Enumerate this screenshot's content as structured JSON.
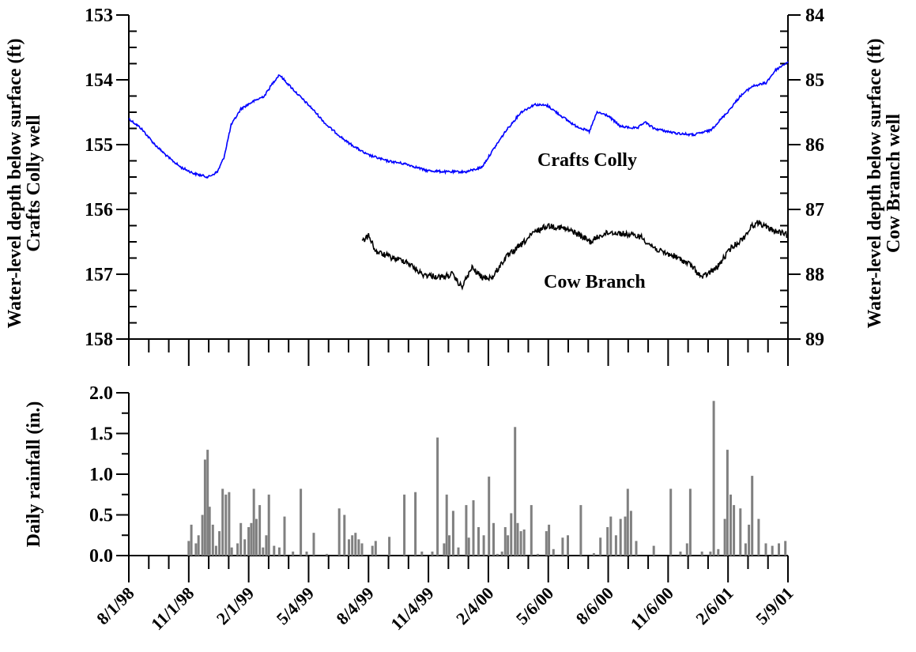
{
  "chart_data": [
    {
      "type": "line",
      "title": "",
      "ylabel_left": [
        "Water-level depth below surface (ft)",
        "Crafts Colly well"
      ],
      "ylabel_right": [
        "Water-level depth below surface (ft)",
        "Cow Branch well"
      ],
      "ylim_left": [
        153,
        158
      ],
      "ylim_right": [
        84,
        89
      ],
      "y_inverted": true,
      "left_ticks": [
        "153",
        "154",
        "155",
        "156",
        "157",
        "158"
      ],
      "right_ticks": [
        "84",
        "85",
        "86",
        "87",
        "88",
        "89"
      ],
      "series": [
        {
          "name": "Crafts Colly",
          "axis": "left",
          "color": "#0000ff",
          "points": [
            [
              "1998-08-01",
              154.6
            ],
            [
              "1998-08-20",
              154.75
            ],
            [
              "1998-09-10",
              155.0
            ],
            [
              "1998-10-01",
              155.2
            ],
            [
              "1998-10-20",
              155.35
            ],
            [
              "1998-11-10",
              155.45
            ],
            [
              "1998-12-01",
              155.5
            ],
            [
              "1998-12-15",
              155.42
            ],
            [
              "1998-12-25",
              155.2
            ],
            [
              "1999-01-05",
              154.7
            ],
            [
              "1999-01-20",
              154.45
            ],
            [
              "1999-02-05",
              154.35
            ],
            [
              "1999-02-25",
              154.25
            ],
            [
              "1999-03-10",
              154.05
            ],
            [
              "1999-03-20",
              153.92
            ],
            [
              "1999-04-01",
              154.05
            ],
            [
              "1999-04-20",
              154.25
            ],
            [
              "1999-05-10",
              154.45
            ],
            [
              "1999-06-01",
              154.7
            ],
            [
              "1999-07-01",
              154.95
            ],
            [
              "1999-08-01",
              155.15
            ],
            [
              "1999-09-01",
              155.25
            ],
            [
              "1999-10-01",
              155.3
            ],
            [
              "1999-11-01",
              155.4
            ],
            [
              "1999-12-01",
              155.42
            ],
            [
              "2000-01-01",
              155.42
            ],
            [
              "2000-01-25",
              155.35
            ],
            [
              "2000-02-10",
              155.1
            ],
            [
              "2000-03-01",
              154.8
            ],
            [
              "2000-03-25",
              154.5
            ],
            [
              "2000-04-15",
              154.38
            ],
            [
              "2000-05-05",
              154.4
            ],
            [
              "2000-05-25",
              154.55
            ],
            [
              "2000-06-15",
              154.7
            ],
            [
              "2000-07-08",
              154.8
            ],
            [
              "2000-07-20",
              154.5
            ],
            [
              "2000-08-05",
              154.55
            ],
            [
              "2000-08-25",
              154.72
            ],
            [
              "2000-09-20",
              154.75
            ],
            [
              "2000-10-01",
              154.65
            ],
            [
              "2000-10-15",
              154.75
            ],
            [
              "2000-11-15",
              154.82
            ],
            [
              "2000-12-15",
              154.85
            ],
            [
              "2001-01-10",
              154.78
            ],
            [
              "2001-02-05",
              154.5
            ],
            [
              "2001-02-25",
              154.25
            ],
            [
              "2001-03-15",
              154.1
            ],
            [
              "2001-04-05",
              154.05
            ],
            [
              "2001-04-20",
              153.85
            ],
            [
              "2001-05-09",
              153.72
            ]
          ]
        },
        {
          "name": "Cow Branch",
          "axis": "right",
          "color": "#000000",
          "points": [
            [
              "1999-07-25",
              87.5
            ],
            [
              "1999-08-05",
              87.4
            ],
            [
              "1999-08-15",
              87.65
            ],
            [
              "1999-09-10",
              87.75
            ],
            [
              "1999-10-01",
              87.8
            ],
            [
              "1999-10-25",
              88.0
            ],
            [
              "1999-11-25",
              88.05
            ],
            [
              "1999-12-10",
              88.0
            ],
            [
              "1999-12-25",
              88.2
            ],
            [
              "2000-01-10",
              87.9
            ],
            [
              "2000-01-25",
              88.05
            ],
            [
              "2000-02-10",
              88.05
            ],
            [
              "2000-03-01",
              87.75
            ],
            [
              "2000-03-25",
              87.55
            ],
            [
              "2000-04-15",
              87.35
            ],
            [
              "2000-05-05",
              87.25
            ],
            [
              "2000-05-25",
              87.28
            ],
            [
              "2000-06-15",
              87.35
            ],
            [
              "2000-07-10",
              87.5
            ],
            [
              "2000-07-25",
              87.4
            ],
            [
              "2000-08-10",
              87.35
            ],
            [
              "2000-09-01",
              87.38
            ],
            [
              "2000-09-25",
              87.42
            ],
            [
              "2000-10-10",
              87.55
            ],
            [
              "2000-10-25",
              87.65
            ],
            [
              "2000-11-15",
              87.72
            ],
            [
              "2000-12-10",
              87.85
            ],
            [
              "2000-12-28",
              88.05
            ],
            [
              "2001-01-20",
              87.9
            ],
            [
              "2001-02-10",
              87.6
            ],
            [
              "2001-03-01",
              87.45
            ],
            [
              "2001-03-15",
              87.25
            ],
            [
              "2001-03-25",
              87.2
            ],
            [
              "2001-04-10",
              87.3
            ],
            [
              "2001-04-25",
              87.35
            ],
            [
              "2001-05-09",
              87.4
            ]
          ]
        }
      ],
      "xlim": [
        "1998-08-01",
        "2001-05-09"
      ]
    },
    {
      "type": "bar",
      "title": "",
      "ylabel": "Daily rainfall (in.)",
      "ylim": [
        0,
        2.0
      ],
      "yticks": [
        "0.0",
        "0.5",
        "1.0",
        "1.5",
        "2.0"
      ],
      "color": "#808080",
      "xlim": [
        "1998-08-01",
        "2001-05-09"
      ],
      "x_tick_labels": [
        "8/1/98",
        "11/1/98",
        "2/1/99",
        "5/4/99",
        "8/4/99",
        "11/4/99",
        "2/4/00",
        "5/6/00",
        "8/6/00",
        "11/6/00",
        "2/6/01",
        "5/9/01"
      ],
      "x_tick_dates": [
        "1998-08-01",
        "1998-11-01",
        "1999-02-01",
        "1999-05-04",
        "1999-08-04",
        "1999-11-04",
        "2000-02-04",
        "2000-05-06",
        "2000-08-06",
        "2000-11-06",
        "2001-02-06",
        "2001-05-09"
      ],
      "bars": [
        [
          "1998-11-01",
          0.18
        ],
        [
          "1998-11-05",
          0.38
        ],
        [
          "1998-11-12",
          0.15
        ],
        [
          "1998-11-16",
          0.25
        ],
        [
          "1998-11-22",
          0.5
        ],
        [
          "1998-11-26",
          1.18
        ],
        [
          "1998-11-30",
          1.3
        ],
        [
          "1998-12-03",
          0.6
        ],
        [
          "1998-12-08",
          0.38
        ],
        [
          "1998-12-13",
          0.12
        ],
        [
          "1998-12-18",
          0.3
        ],
        [
          "1998-12-23",
          0.82
        ],
        [
          "1998-12-28",
          0.75
        ],
        [
          "1999-01-02",
          0.78
        ],
        [
          "1999-01-06",
          0.1
        ],
        [
          "1999-01-15",
          0.15
        ],
        [
          "1999-01-20",
          0.4
        ],
        [
          "1999-01-26",
          0.2
        ],
        [
          "1999-02-01",
          0.35
        ],
        [
          "1999-02-05",
          0.4
        ],
        [
          "1999-02-09",
          0.82
        ],
        [
          "1999-02-13",
          0.45
        ],
        [
          "1999-02-18",
          0.62
        ],
        [
          "1999-02-23",
          0.1
        ],
        [
          "1999-02-28",
          0.25
        ],
        [
          "1999-03-04",
          0.75
        ],
        [
          "1999-03-12",
          0.12
        ],
        [
          "1999-03-20",
          0.1
        ],
        [
          "1999-03-28",
          0.48
        ],
        [
          "1999-04-10",
          0.05
        ],
        [
          "1999-04-22",
          0.82
        ],
        [
          "1999-05-01",
          0.05
        ],
        [
          "1999-05-12",
          0.28
        ],
        [
          "1999-06-01",
          0.02
        ],
        [
          "1999-06-20",
          0.58
        ],
        [
          "1999-06-28",
          0.5
        ],
        [
          "1999-07-05",
          0.2
        ],
        [
          "1999-07-10",
          0.25
        ],
        [
          "1999-07-15",
          0.28
        ],
        [
          "1999-07-20",
          0.2
        ],
        [
          "1999-07-25",
          0.15
        ],
        [
          "1999-08-10",
          0.12
        ],
        [
          "1999-08-15",
          0.18
        ],
        [
          "1999-09-05",
          0.23
        ],
        [
          "1999-09-28",
          0.75
        ],
        [
          "1999-10-15",
          0.78
        ],
        [
          "1999-10-25",
          0.05
        ],
        [
          "1999-11-10",
          0.05
        ],
        [
          "1999-11-18",
          1.45
        ],
        [
          "1999-11-28",
          0.15
        ],
        [
          "1999-12-02",
          0.75
        ],
        [
          "1999-12-06",
          0.25
        ],
        [
          "1999-12-12",
          0.55
        ],
        [
          "1999-12-20",
          0.1
        ],
        [
          "2000-01-01",
          0.62
        ],
        [
          "2000-01-05",
          0.22
        ],
        [
          "2000-01-12",
          0.68
        ],
        [
          "2000-01-20",
          0.35
        ],
        [
          "2000-01-28",
          0.25
        ],
        [
          "2000-02-05",
          0.97
        ],
        [
          "2000-02-12",
          0.4
        ],
        [
          "2000-02-18",
          0.02
        ],
        [
          "2000-02-25",
          0.05
        ],
        [
          "2000-03-01",
          0.35
        ],
        [
          "2000-03-05",
          0.25
        ],
        [
          "2000-03-10",
          0.52
        ],
        [
          "2000-03-16",
          1.58
        ],
        [
          "2000-03-20",
          0.4
        ],
        [
          "2000-03-25",
          0.3
        ],
        [
          "2000-03-30",
          0.32
        ],
        [
          "2000-04-10",
          0.62
        ],
        [
          "2000-04-20",
          0.02
        ],
        [
          "2000-05-03",
          0.3
        ],
        [
          "2000-05-07",
          0.38
        ],
        [
          "2000-05-14",
          0.08
        ],
        [
          "2000-05-28",
          0.22
        ],
        [
          "2000-06-05",
          0.25
        ],
        [
          "2000-06-25",
          0.62
        ],
        [
          "2000-07-15",
          0.03
        ],
        [
          "2000-07-25",
          0.22
        ],
        [
          "2000-08-05",
          0.35
        ],
        [
          "2000-08-10",
          0.48
        ],
        [
          "2000-08-18",
          0.25
        ],
        [
          "2000-08-25",
          0.45
        ],
        [
          "2000-09-01",
          0.48
        ],
        [
          "2000-09-05",
          0.82
        ],
        [
          "2000-09-10",
          0.55
        ],
        [
          "2000-09-18",
          0.18
        ],
        [
          "2000-10-15",
          0.12
        ],
        [
          "2000-11-10",
          0.82
        ],
        [
          "2000-11-25",
          0.05
        ],
        [
          "2000-12-05",
          0.15
        ],
        [
          "2000-12-10",
          0.82
        ],
        [
          "2000-12-28",
          0.05
        ],
        [
          "2001-01-10",
          0.05
        ],
        [
          "2001-01-15",
          1.9
        ],
        [
          "2001-01-22",
          0.08
        ],
        [
          "2001-02-01",
          0.45
        ],
        [
          "2001-02-05",
          1.3
        ],
        [
          "2001-02-10",
          0.75
        ],
        [
          "2001-02-15",
          0.62
        ],
        [
          "2001-02-25",
          0.58
        ],
        [
          "2001-03-05",
          0.15
        ],
        [
          "2001-03-10",
          0.38
        ],
        [
          "2001-03-15",
          0.98
        ],
        [
          "2001-03-25",
          0.45
        ],
        [
          "2001-04-05",
          0.15
        ],
        [
          "2001-04-15",
          0.12
        ],
        [
          "2001-04-25",
          0.15
        ],
        [
          "2001-05-05",
          0.18
        ]
      ]
    }
  ]
}
